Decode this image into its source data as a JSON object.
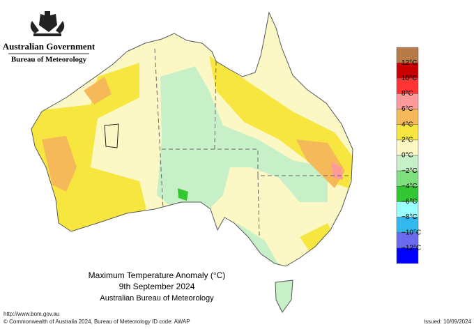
{
  "header": {
    "government": "Australian Government",
    "bureau": "Bureau of Meteorology"
  },
  "title": {
    "line1": "Maximum Temperature Anomaly (°C)",
    "line2": "9th September 2024",
    "line3": "Australian Bureau of Meteorology"
  },
  "legend": {
    "colors": [
      "#b57a48",
      "#c80000",
      "#ff3535",
      "#ff9a9a",
      "#f5b95a",
      "#f7e640",
      "#fbf8c6",
      "#c8f0c8",
      "#80e080",
      "#33c833",
      "#99ffff",
      "#33b8ee",
      "#6a6aee",
      "#0000ff"
    ],
    "labels": [
      "12°C",
      "10°C",
      "8°C",
      "6°C",
      "4°C",
      "2°C",
      "0°C",
      "−2°C",
      "−4°C",
      "−6°C",
      "−8°C",
      "−10°C",
      "−12°C"
    ]
  },
  "footer": {
    "url": "http://www.bom.gov.au",
    "copyright": "© Commonwealth of Australia 2024, Bureau of Meteorology",
    "id_code": "ID code: AWAP",
    "issued": "Issued: 10/09/2024"
  }
}
